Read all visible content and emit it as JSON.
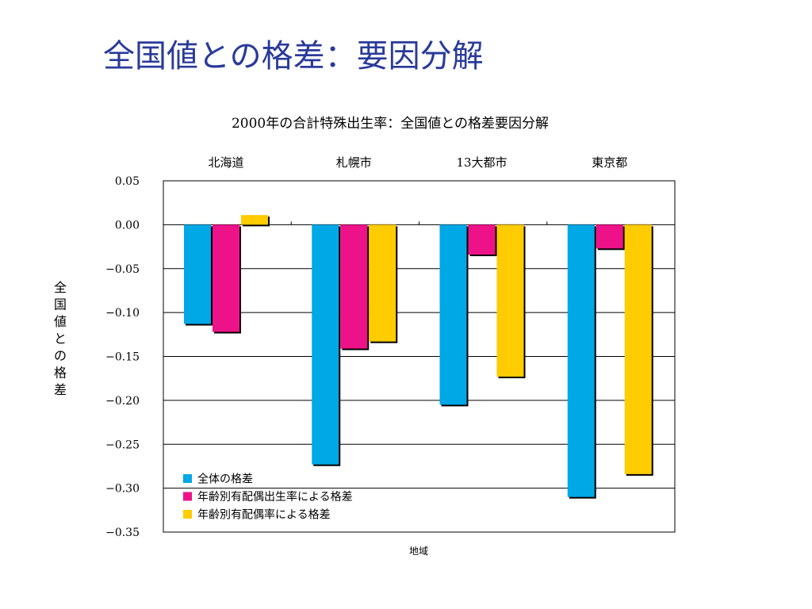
{
  "slide": {
    "title": "全国値との格差：要因分解"
  },
  "colors": {
    "title": "#2a3a9a",
    "series": [
      "#00a8e6",
      "#ee1288",
      "#ffcc00"
    ]
  },
  "chart_data": {
    "type": "bar",
    "title": "2000年の合計特殊出生率：全国値との格差要因分解",
    "xlabel": "地域",
    "ylabel": "全国値との格差",
    "categories": [
      "北海道",
      "札幌市",
      "13大都市",
      "東京都"
    ],
    "ylim": [
      -0.35,
      0.05
    ],
    "yticks": [
      0.05,
      0.0,
      -0.05,
      -0.1,
      -0.15,
      -0.2,
      -0.25,
      -0.3,
      -0.35
    ],
    "ytick_labels": [
      "0.05",
      "0.00",
      "−0.05",
      "−0.10",
      "−0.15",
      "−0.20",
      "−0.25",
      "−0.30",
      "−0.35"
    ],
    "grid": true,
    "legend_position": "bottom-left",
    "series": [
      {
        "name": "全体の格差",
        "values": [
          -0.113,
          -0.273,
          -0.205,
          -0.31
        ]
      },
      {
        "name": "年齢別有配偶出生率による格差",
        "values": [
          -0.122,
          -0.141,
          -0.034,
          -0.027
        ]
      },
      {
        "name": "年齢別有配偶率による格差",
        "values": [
          0.011,
          -0.133,
          -0.173,
          -0.284
        ]
      }
    ]
  }
}
